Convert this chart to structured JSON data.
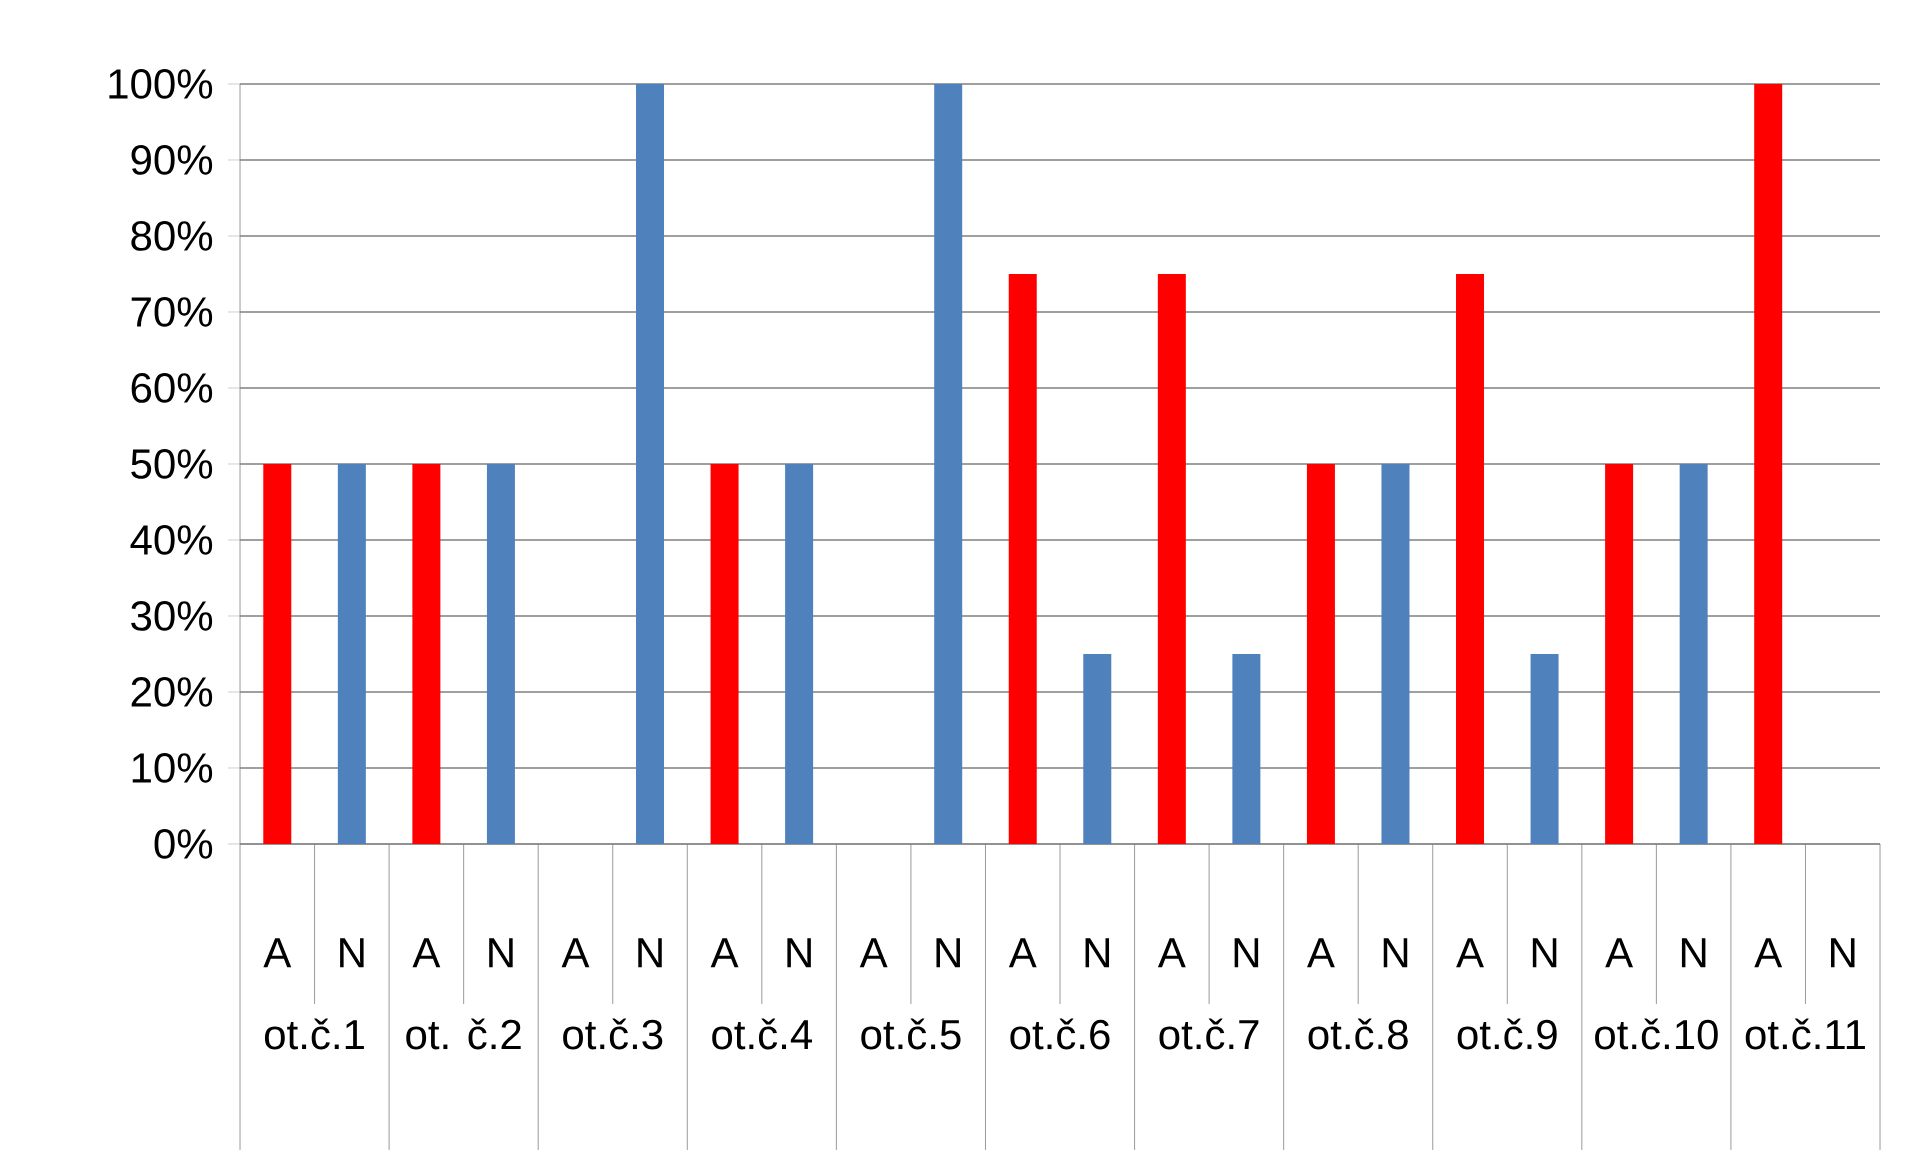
{
  "chart_data": {
    "type": "bar",
    "categories": [
      "A",
      "N",
      "A",
      "N",
      "A",
      "N",
      "A",
      "N",
      "A",
      "N",
      "A",
      "N",
      "A",
      "N",
      "A",
      "N",
      "A",
      "N",
      "A",
      "N",
      "A",
      "N"
    ],
    "values": [
      50,
      50,
      50,
      50,
      0,
      100,
      50,
      50,
      0,
      100,
      75,
      25,
      75,
      25,
      50,
      50,
      75,
      25,
      50,
      50,
      100,
      0
    ],
    "colors": [
      "#ff0000",
      "#4f81bd",
      "#ff0000",
      "#4f81bd",
      "#ff0000",
      "#4f81bd",
      "#ff0000",
      "#4f81bd",
      "#ff0000",
      "#4f81bd",
      "#ff0000",
      "#4f81bd",
      "#ff0000",
      "#4f81bd",
      "#ff0000",
      "#4f81bd",
      "#ff0000",
      "#4f81bd",
      "#ff0000",
      "#4f81bd",
      "#ff0000",
      "#4f81bd"
    ],
    "annotations": [
      "ot.č.1",
      "ot. č.2",
      "ot.č.3",
      "ot.č.4",
      "ot.č.5",
      "ot.č.6",
      "ot.č.7",
      "ot.č.8",
      "ot.č.9",
      "ot.č.10",
      "ot.č.11"
    ],
    "ylim": [
      0,
      100
    ],
    "yticks": [
      {
        "value": 0,
        "label": "0%"
      },
      {
        "value": 10,
        "label": "10%"
      },
      {
        "value": 20,
        "label": "20%"
      },
      {
        "value": 30,
        "label": "30%"
      },
      {
        "value": 40,
        "label": "40%"
      },
      {
        "value": 50,
        "label": "50%"
      },
      {
        "value": 60,
        "label": "60%"
      },
      {
        "value": 70,
        "label": "70%"
      },
      {
        "value": 80,
        "label": "80%"
      },
      {
        "value": 90,
        "label": "90%"
      },
      {
        "value": 100,
        "label": "100%"
      }
    ],
    "grid": "y"
  }
}
